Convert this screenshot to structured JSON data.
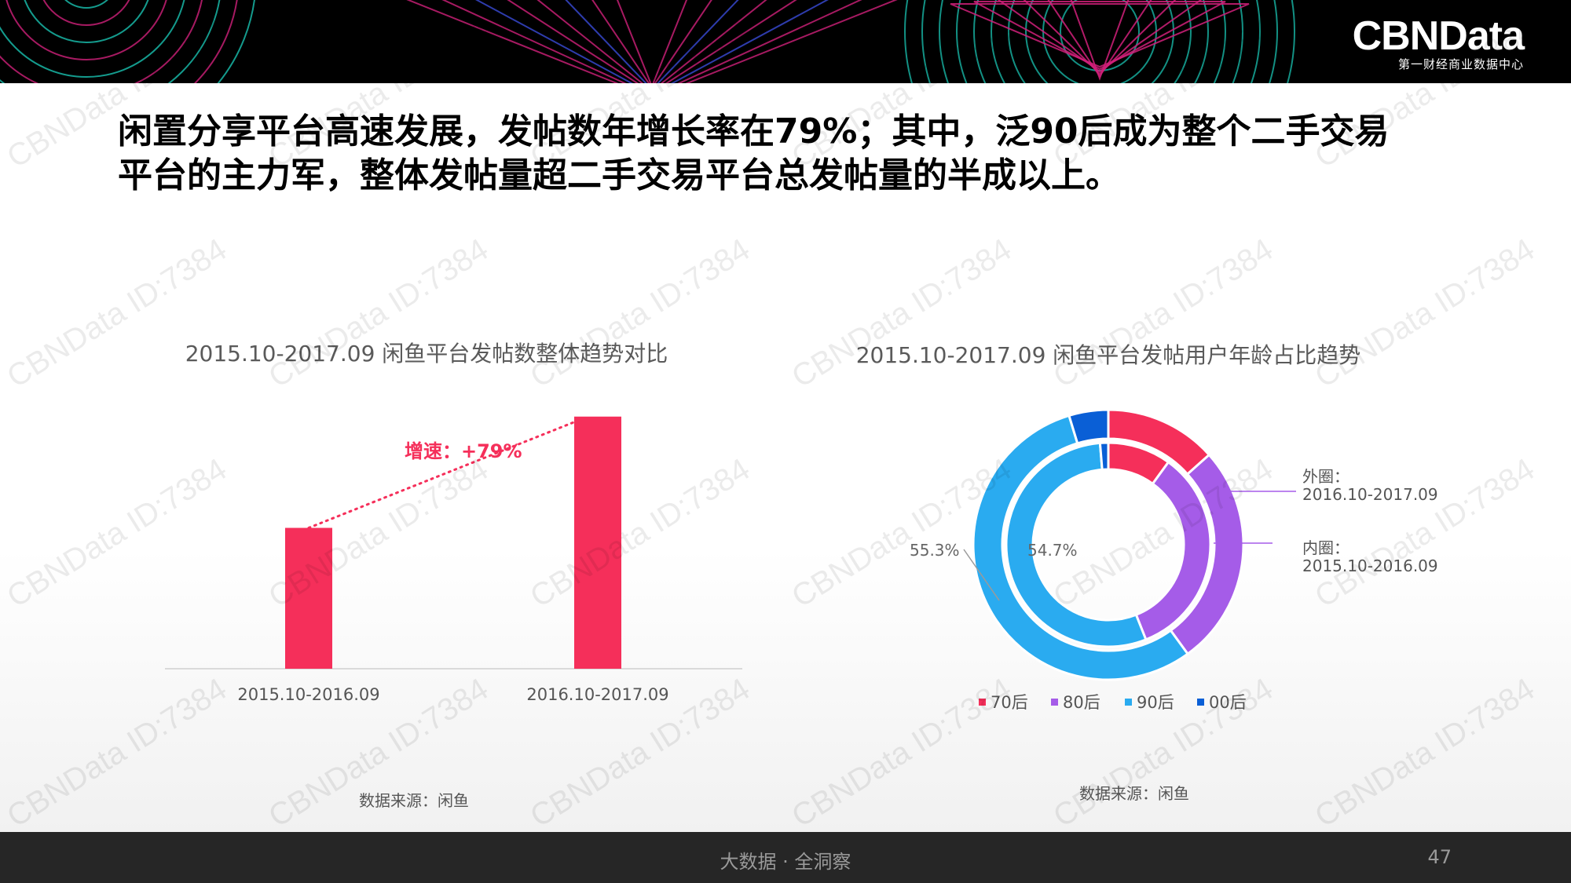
{
  "header": {
    "logo_name": "CBNData",
    "logo_tagline": "第一财经商业数据中心",
    "colors": {
      "background": "#000000",
      "pattern_pink": "#d1207a",
      "pattern_teal": "#19c2b0",
      "pattern_blue": "#3a4bd8"
    }
  },
  "headline": {
    "line1": "闲置分享平台高速发展，发帖数年增长率在79%；其中，泛90后成为整个二手交易",
    "line2": "平台的主力军，整体发帖量超二手交易平台总发帖量的半成以上。"
  },
  "chart_data": [
    {
      "type": "bar",
      "title": "2015.10-2017.09 闲鱼平台发帖数整体趋势对比",
      "categories": [
        "2015.10-2016.09",
        "2016.10-2017.09"
      ],
      "values": [
        100,
        179
      ],
      "ylim": [
        0,
        185
      ],
      "grid": false,
      "annotation": {
        "text": "增速：+79%",
        "color": "#f52f5a"
      },
      "color": "#f52f5a",
      "source": "数据来源：闲鱼"
    },
    {
      "type": "pie",
      "title": "2015.10-2017.09 闲鱼平台发帖用户年龄占比趋势",
      "legend": [
        "70后",
        "80后",
        "90后",
        "00后"
      ],
      "legend_position": "bottom",
      "colors": [
        "#f52f5a",
        "#a55ce8",
        "#2aabf0",
        "#0a5fd6"
      ],
      "rings": [
        {
          "label": "外圈：",
          "period": "2016.10-2017.09",
          "values": [
            13.4,
            26.6,
            55.3,
            4.7
          ],
          "callout": "55.3%"
        },
        {
          "label": "内圈：",
          "period": "2015.10-2016.09",
          "values": [
            10.0,
            34.0,
            54.7,
            1.3
          ],
          "callout": "54.7%"
        }
      ],
      "source": "数据来源：闲鱼"
    }
  ],
  "footer": {
    "slogan": "大数据 · 全洞察",
    "page_number": "47"
  },
  "watermark": "CBNData ID:7384"
}
